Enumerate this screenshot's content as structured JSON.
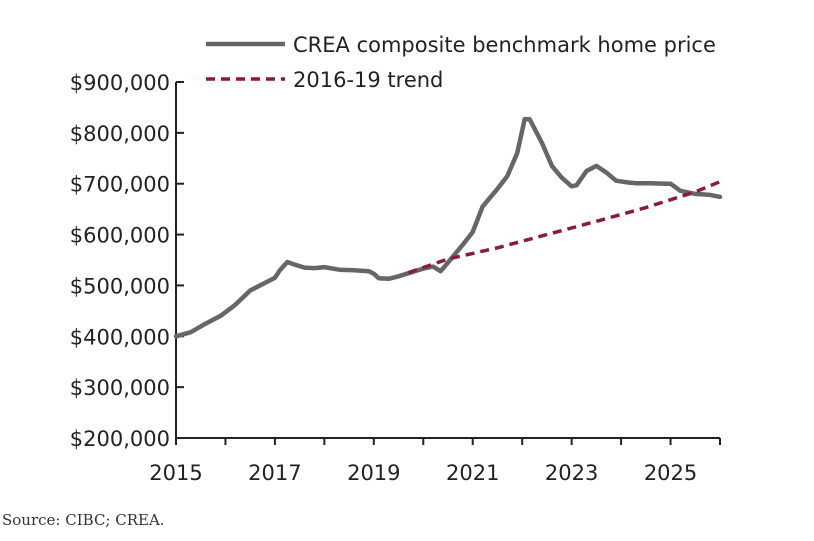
{
  "chart_data": {
    "type": "line",
    "title": "",
    "xlabel": "",
    "ylabel": "",
    "xlim": [
      2015,
      2026
    ],
    "ylim": [
      200000,
      900000
    ],
    "x_ticks": [
      2015,
      2017,
      2019,
      2021,
      2023,
      2025
    ],
    "x_tick_labels": [
      "2015",
      "2017",
      "2019",
      "2021",
      "2023",
      "2025"
    ],
    "y_ticks": [
      200000,
      300000,
      400000,
      500000,
      600000,
      700000,
      800000,
      900000
    ],
    "y_tick_labels": [
      "$200,000",
      "$300,000",
      "$400,000",
      "$500,000",
      "$600,000",
      "$700,000",
      "$800,000",
      "$900,000"
    ],
    "grid": false,
    "legend_position": "top",
    "series": [
      {
        "name": "CREA composite benchmark home price",
        "color": "#666666",
        "style": "solid",
        "points": [
          [
            2015.0,
            400000
          ],
          [
            2015.3,
            408000
          ],
          [
            2015.6,
            425000
          ],
          [
            2015.9,
            440000
          ],
          [
            2016.2,
            462000
          ],
          [
            2016.5,
            490000
          ],
          [
            2016.8,
            505000
          ],
          [
            2017.0,
            515000
          ],
          [
            2017.1,
            530000
          ],
          [
            2017.25,
            546000
          ],
          [
            2017.4,
            541000
          ],
          [
            2017.6,
            535000
          ],
          [
            2017.8,
            534000
          ],
          [
            2018.0,
            536000
          ],
          [
            2018.3,
            531000
          ],
          [
            2018.6,
            530000
          ],
          [
            2018.9,
            528000
          ],
          [
            2019.0,
            523000
          ],
          [
            2019.1,
            514000
          ],
          [
            2019.3,
            513000
          ],
          [
            2019.5,
            518000
          ],
          [
            2019.8,
            527000
          ],
          [
            2020.0,
            533000
          ],
          [
            2020.2,
            537000
          ],
          [
            2020.35,
            528000
          ],
          [
            2020.5,
            545000
          ],
          [
            2020.8,
            580000
          ],
          [
            2021.0,
            605000
          ],
          [
            2021.2,
            655000
          ],
          [
            2021.5,
            690000
          ],
          [
            2021.7,
            715000
          ],
          [
            2021.9,
            760000
          ],
          [
            2022.05,
            827000
          ],
          [
            2022.15,
            827000
          ],
          [
            2022.4,
            780000
          ],
          [
            2022.6,
            735000
          ],
          [
            2022.8,
            712000
          ],
          [
            2023.0,
            695000
          ],
          [
            2023.1,
            697000
          ],
          [
            2023.3,
            725000
          ],
          [
            2023.5,
            735000
          ],
          [
            2023.7,
            722000
          ],
          [
            2023.9,
            706000
          ],
          [
            2024.1,
            703000
          ],
          [
            2024.3,
            701000
          ],
          [
            2024.6,
            701000
          ],
          [
            2024.9,
            700000
          ],
          [
            2025.0,
            700000
          ],
          [
            2025.2,
            686000
          ],
          [
            2025.5,
            680000
          ],
          [
            2025.8,
            678000
          ],
          [
            2026.0,
            674000
          ]
        ]
      },
      {
        "name": "2016-19 trend",
        "color": "#8b1a3a",
        "style": "dashed",
        "points": [
          [
            2019.7,
            525000
          ],
          [
            2020.5,
            552000
          ],
          [
            2021.5,
            574000
          ],
          [
            2022.5,
            600000
          ],
          [
            2023.5,
            626000
          ],
          [
            2024.5,
            653000
          ],
          [
            2025.5,
            684000
          ],
          [
            2026.0,
            704000
          ]
        ]
      }
    ]
  },
  "source": "Source: CIBC; CREA."
}
